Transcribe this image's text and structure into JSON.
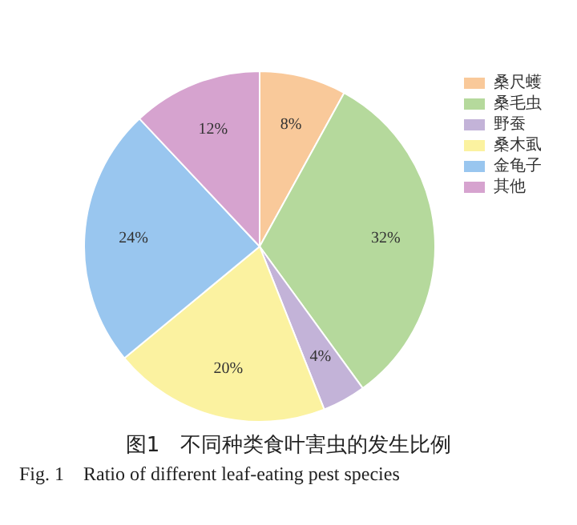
{
  "chart_data": {
    "type": "pie",
    "title": "图1　不同种类食叶害虫的发生比例",
    "subtitle": "Fig. 1　Ratio of different leaf-eating pest species",
    "categories": [
      "桑尺蠖",
      "桑毛虫",
      "野蚕",
      "桑木虱",
      "金龟子",
      "其他"
    ],
    "values": [
      8,
      32,
      4,
      20,
      24,
      12
    ],
    "value_labels": [
      "8%",
      "32%",
      "4%",
      "20%",
      "24%",
      "12%"
    ],
    "colors": [
      "#f9c99a",
      "#b5d99c",
      "#c3b3d8",
      "#fbf2a0",
      "#99c6ef",
      "#d6a3cf"
    ],
    "legend": "top right"
  }
}
